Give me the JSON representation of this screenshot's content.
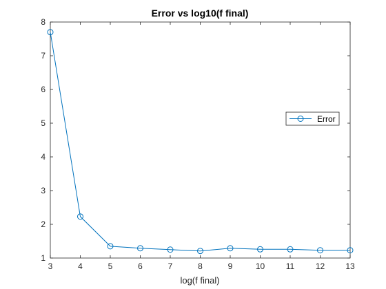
{
  "chart_data": {
    "type": "line",
    "title": "Error vs log10(f final)",
    "xlabel": "log(f final)",
    "ylabel": "",
    "xlim": [
      3,
      13
    ],
    "ylim": [
      1,
      8
    ],
    "x_ticks": [
      3,
      4,
      5,
      6,
      7,
      8,
      9,
      10,
      11,
      12,
      13
    ],
    "y_ticks": [
      1,
      2,
      3,
      4,
      5,
      6,
      7,
      8
    ],
    "grid": false,
    "legend_placement": "right",
    "series": [
      {
        "name": "Error",
        "color": "#0072BD",
        "marker": "circle",
        "x": [
          3,
          4,
          5,
          6,
          7,
          8,
          9,
          10,
          11,
          12,
          13
        ],
        "y": [
          7.7,
          2.23,
          1.35,
          1.29,
          1.25,
          1.21,
          1.29,
          1.26,
          1.26,
          1.23,
          1.23
        ]
      }
    ]
  }
}
